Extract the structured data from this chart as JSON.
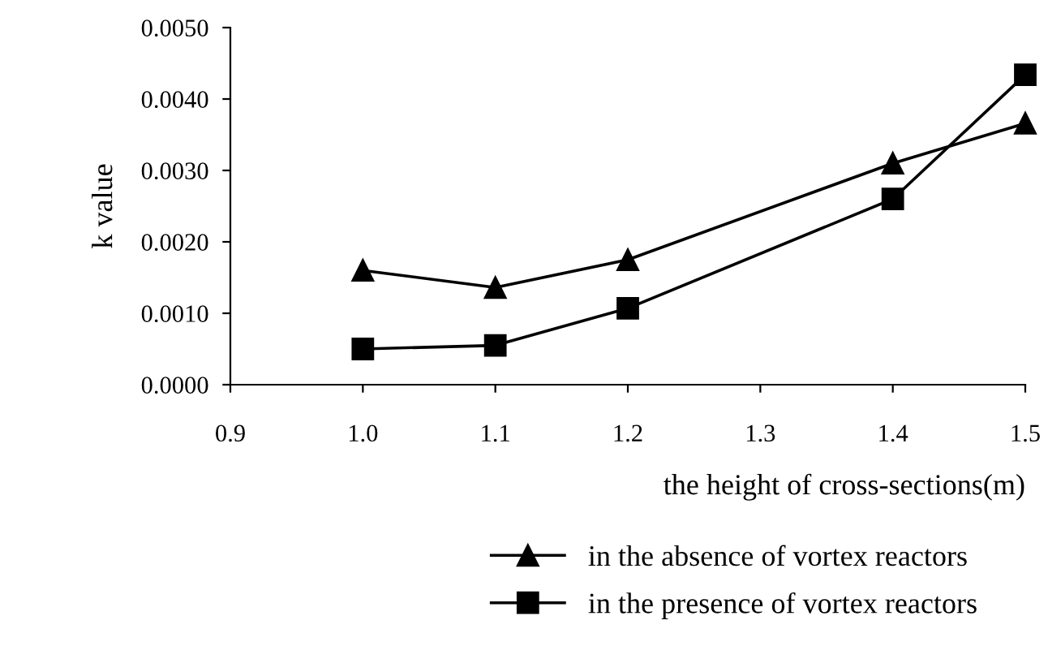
{
  "chart_data": {
    "type": "line",
    "xlabel": "the height of cross-sections(m)",
    "ylabel": "k value",
    "x": [
      1.0,
      1.1,
      1.2,
      1.4,
      1.5
    ],
    "series": [
      {
        "name": "in the absence of vortex reactors",
        "color": "#000000",
        "marker": "triangle",
        "values": [
          0.0016,
          0.00136,
          0.00175,
          0.0031,
          0.00366
        ]
      },
      {
        "name": "in the presence of vortex reactors",
        "color": "#000000",
        "marker": "square",
        "values": [
          0.0005,
          0.00055,
          0.00107,
          0.0026,
          0.00434
        ]
      }
    ],
    "xlim": [
      0.9,
      1.5
    ],
    "xticks": [
      {
        "value": 0.9,
        "label": "0.9"
      },
      {
        "value": 1.0,
        "label": "1.0"
      },
      {
        "value": 1.1,
        "label": "1.1"
      },
      {
        "value": 1.2,
        "label": "1.2"
      },
      {
        "value": 1.3,
        "label": "1.3"
      },
      {
        "value": 1.4,
        "label": "1.4"
      },
      {
        "value": 1.5,
        "label": "1.5"
      }
    ],
    "ylim": [
      0,
      0.005
    ],
    "yticks": [
      {
        "value": 0,
        "label": "0.0000"
      },
      {
        "value": 0.001,
        "label": "0.0010"
      },
      {
        "value": 0.002,
        "label": "0.0020"
      },
      {
        "value": 0.003,
        "label": "0.0030"
      },
      {
        "value": 0.004,
        "label": "0.0040"
      },
      {
        "value": 0.005,
        "label": "0.0050"
      }
    ],
    "grid": false,
    "legend": "bottom",
    "line_style": "solid"
  }
}
